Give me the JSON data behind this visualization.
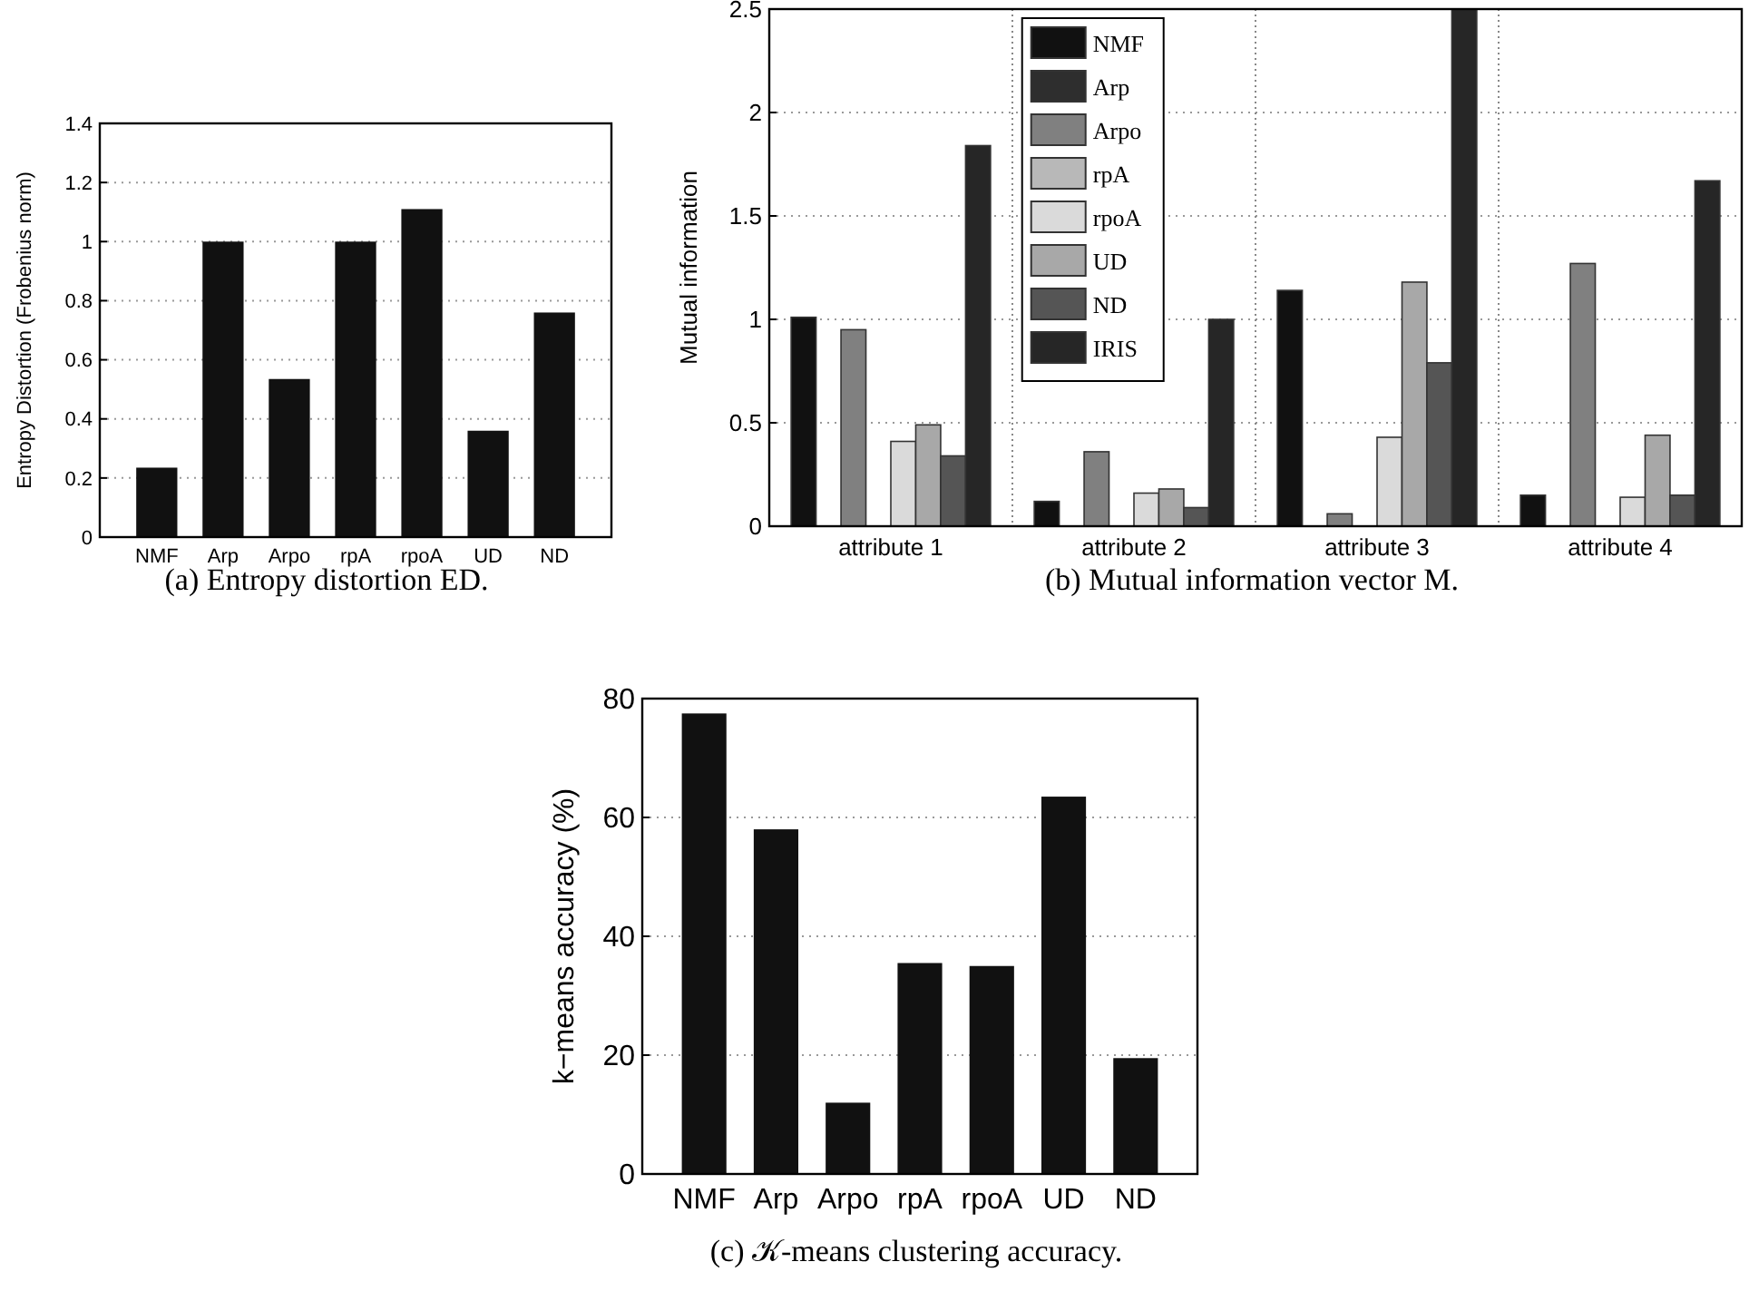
{
  "chart_data": [
    {
      "type": "bar",
      "ylabel": "Entropy Distortion (Frobenius norm)",
      "categories": [
        "NMF",
        "Arp",
        "Arpo",
        "rpA",
        "rpoA",
        "UD",
        "ND"
      ],
      "values": [
        0.235,
        1.0,
        0.535,
        1.0,
        1.11,
        0.36,
        0.76
      ],
      "color": "#111111",
      "ylim": [
        0,
        1.4
      ],
      "yticks": [
        0,
        0.2,
        0.4,
        0.6,
        0.8,
        1,
        1.2,
        1.4
      ],
      "grid": "y",
      "annotations": [
        "(a) Entropy distortion ED."
      ]
    },
    {
      "type": "bar",
      "ylabel": "Mutual information",
      "categories": [
        "attribute 1",
        "attribute 2",
        "attribute 3",
        "attribute 4"
      ],
      "series": [
        {
          "name": "NMF",
          "color": "#111111",
          "values": [
            1.01,
            0.12,
            1.14,
            0.15
          ]
        },
        {
          "name": "Arp",
          "color": "#2e2e2e",
          "values": [
            0,
            0,
            0,
            0
          ]
        },
        {
          "name": "Arpo",
          "color": "#808080",
          "values": [
            0.95,
            0.36,
            0.06,
            1.27
          ]
        },
        {
          "name": "rpA",
          "color": "#b8b8b8",
          "values": [
            0,
            0,
            0,
            0
          ]
        },
        {
          "name": "rpoA",
          "color": "#dadada",
          "values": [
            0.41,
            0.16,
            0.43,
            0.14
          ]
        },
        {
          "name": "UD",
          "color": "#a8a8a8",
          "values": [
            0.49,
            0.18,
            1.18,
            0.44
          ]
        },
        {
          "name": "ND",
          "color": "#555555",
          "values": [
            0.34,
            0.09,
            0.79,
            0.15
          ]
        },
        {
          "name": "IRIS",
          "color": "#262626",
          "values": [
            1.84,
            1.0,
            2.5,
            1.67
          ]
        }
      ],
      "ylim": [
        0,
        2.5
      ],
      "yticks": [
        0,
        0.5,
        1,
        1.5,
        2,
        2.5
      ],
      "grid": "y",
      "legend": "top left",
      "annotations": [
        "(b) Mutual information vector M."
      ]
    },
    {
      "type": "bar",
      "ylabel": "k−means accuracy (%)",
      "categories": [
        "NMF",
        "Arp",
        "Arpo",
        "rpA",
        "rpoA",
        "UD",
        "ND"
      ],
      "values": [
        77.5,
        58,
        12,
        35.5,
        35,
        63.5,
        19.5
      ],
      "color": "#111111",
      "ylim": [
        0,
        80
      ],
      "yticks": [
        0,
        20,
        40,
        60,
        80
      ],
      "grid": "y",
      "annotations": [
        "(c) 𝒦-means clustering accuracy."
      ]
    }
  ]
}
